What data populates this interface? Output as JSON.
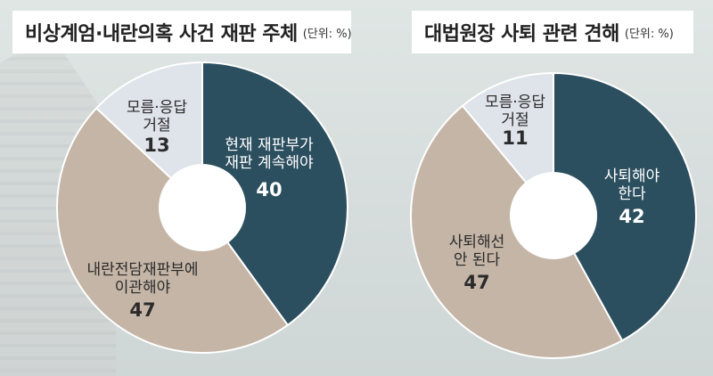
{
  "charts": [
    {
      "title": "비상계엄·내란의혹 사건 재판 주체",
      "unit": "(단위: %)"
    },
    {
      "title": "대법원장 사퇴 관련 견해",
      "unit": "(단위: %)"
    }
  ],
  "colors": {
    "dark": "#2c4f5f",
    "tan": "#c4b5a6",
    "light": "#dfe3ea"
  },
  "chart_data": [
    {
      "type": "pie",
      "title": "비상계엄·내란의혹 사건 재판 주체",
      "unit": "(단위: %)",
      "slices": [
        {
          "label": "현재 재판부가 재판 계속해야",
          "value": 40,
          "color": "#2c4f5f"
        },
        {
          "label": "내란전담재판부에 이관해야",
          "value": 47,
          "color": "#c4b5a6"
        },
        {
          "label": "모름·응답 거절",
          "value": 13,
          "color": "#dfe3ea"
        }
      ]
    },
    {
      "type": "pie",
      "title": "대법원장 사퇴 관련 견해",
      "unit": "(단위: %)",
      "slices": [
        {
          "label": "사퇴해야 한다",
          "value": 42,
          "color": "#2c4f5f"
        },
        {
          "label": "사퇴해선 안 된다",
          "value": 47,
          "color": "#c4b5a6"
        },
        {
          "label": "모름·응답 거절",
          "value": 11,
          "color": "#dfe3ea"
        }
      ]
    }
  ]
}
